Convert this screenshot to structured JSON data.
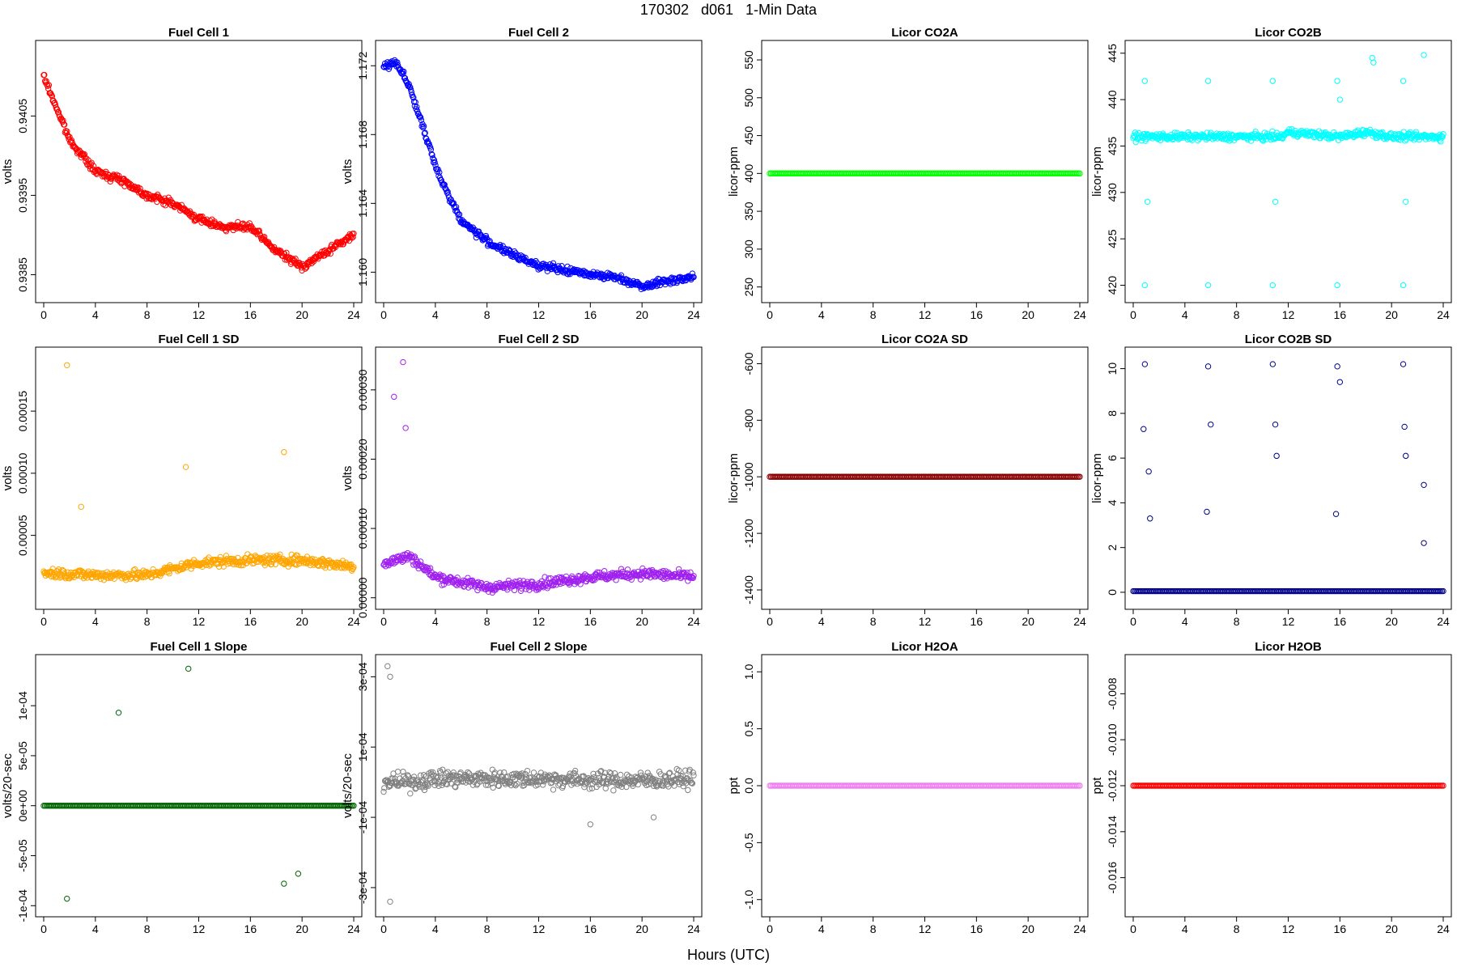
{
  "figure": {
    "title": "170302   d061   1-Min Data",
    "xlabel": "Hours (UTC)",
    "background": "#ffffff"
  },
  "chart_data": [
    {
      "id": "fc1",
      "type": "scatter",
      "title": "Fuel Cell 1",
      "ylabel": "volts",
      "color": "#ff0000",
      "xlim": [
        0,
        24
      ],
      "xticks": [
        "0",
        "4",
        "8",
        "12",
        "16",
        "20",
        "24"
      ],
      "ylim": [
        0.93825,
        0.94135
      ],
      "yticks": [
        {
          "v": 0.9385,
          "label": "0.9385"
        },
        {
          "v": 0.9395,
          "label": "0.9395"
        },
        {
          "v": 0.9405,
          "label": "0.9405"
        }
      ],
      "series": [
        {
          "x": [
            0,
            2,
            4,
            6,
            8,
            10,
            12,
            14,
            16,
            18,
            20,
            22,
            24
          ],
          "y": [
            0.941,
            0.9402,
            0.9398,
            0.9397,
            0.9395,
            0.9394,
            0.9392,
            0.9391,
            0.9391,
            0.9388,
            0.9386,
            0.9388,
            0.939
          ]
        }
      ]
    },
    {
      "id": "fc2",
      "type": "scatter",
      "title": "Fuel Cell 2",
      "ylabel": "volts",
      "color": "#0000ff",
      "xlim": [
        0,
        24
      ],
      "xticks": [
        "0",
        "4",
        "8",
        "12",
        "16",
        "20",
        "24"
      ],
      "ylim": [
        1.1587,
        1.173
      ],
      "yticks": [
        {
          "v": 1.16,
          "label": "1.160"
        },
        {
          "v": 1.164,
          "label": "1.164"
        },
        {
          "v": 1.168,
          "label": "1.168"
        },
        {
          "v": 1.172,
          "label": "1.172"
        }
      ],
      "series": [
        {
          "x": [
            0,
            1,
            2,
            3,
            4,
            5,
            6,
            8,
            10,
            12,
            14,
            16,
            18,
            20,
            22,
            24
          ],
          "y": [
            1.172,
            1.1722,
            1.1708,
            1.1685,
            1.1662,
            1.1645,
            1.163,
            1.1618,
            1.161,
            1.1604,
            1.1601,
            1.1599,
            1.1597,
            1.1592,
            1.1595,
            1.1597
          ]
        }
      ]
    },
    {
      "id": "co2a",
      "type": "scatter",
      "title": "Licor CO2A",
      "ylabel": "licor-ppm",
      "color": "#00ff00",
      "xlim": [
        0,
        24
      ],
      "xticks": [
        "0",
        "4",
        "8",
        "12",
        "16",
        "20",
        "24"
      ],
      "ylim": [
        240,
        565
      ],
      "yticks": [
        {
          "v": 250,
          "label": "250"
        },
        {
          "v": 300,
          "label": "300"
        },
        {
          "v": 350,
          "label": "350"
        },
        {
          "v": 400,
          "label": "400"
        },
        {
          "v": 450,
          "label": "450"
        },
        {
          "v": 500,
          "label": "500"
        },
        {
          "v": 550,
          "label": "550"
        }
      ],
      "series": [
        {
          "x": [
            0,
            24
          ],
          "y": [
            400,
            400
          ]
        }
      ]
    },
    {
      "id": "co2b",
      "type": "scatter",
      "title": "Licor CO2B",
      "ylabel": "licor-ppm",
      "color": "#00ffff",
      "xlim": [
        0,
        24
      ],
      "xticks": [
        "0",
        "4",
        "8",
        "12",
        "16",
        "20",
        "24"
      ],
      "ylim": [
        419,
        445.5
      ],
      "yticks": [
        {
          "v": 420,
          "label": "420"
        },
        {
          "v": 425,
          "label": "425"
        },
        {
          "v": 430,
          "label": "430"
        },
        {
          "v": 435,
          "label": "435"
        },
        {
          "v": 440,
          "label": "440"
        },
        {
          "v": 445,
          "label": "445"
        }
      ],
      "series": [
        {
          "x": [
            0,
            6,
            11.5,
            12,
            16,
            18,
            20,
            24
          ],
          "y": [
            436,
            436,
            436,
            436.5,
            436,
            436.5,
            436,
            436
          ]
        }
      ],
      "outliers": {
        "x": [
          0.9,
          0.9,
          1.1,
          5.8,
          5.8,
          10.8,
          10.8,
          11.0,
          15.8,
          15.8,
          16.0,
          18.5,
          18.6,
          20.9,
          20.9,
          21.1,
          22.5
        ],
        "y": [
          442,
          420,
          429,
          442,
          420,
          442,
          420,
          429,
          442,
          420,
          440,
          444.5,
          444,
          442,
          420,
          429,
          444.8
        ]
      }
    },
    {
      "id": "fc1sd",
      "type": "scatter",
      "title": "Fuel Cell 1 SD",
      "ylabel": "volts",
      "color": "#ffa500",
      "xlim": [
        0,
        24
      ],
      "xticks": [
        "0",
        "4",
        "8",
        "12",
        "16",
        "20",
        "24"
      ],
      "ylim": [
        -3e-06,
        0.000195
      ],
      "yticks": [
        {
          "v": 5e-05,
          "label": "0.00005"
        },
        {
          "v": 0.0001,
          "label": "0.00010"
        },
        {
          "v": 0.00015,
          "label": "0.00015"
        }
      ],
      "series": [
        {
          "x": [
            0,
            4,
            8,
            12,
            16,
            20,
            24
          ],
          "y": [
            2e-05,
            1.8e-05,
            1.8e-05,
            2.8e-05,
            3e-05,
            3e-05,
            2.5e-05
          ]
        }
      ],
      "outliers": {
        "x": [
          1.8,
          11.0,
          18.6,
          2.9
        ],
        "y": [
          0.000187,
          0.000105,
          0.000117,
          7.3e-05
        ]
      }
    },
    {
      "id": "fc2sd",
      "type": "scatter",
      "title": "Fuel Cell 2 SD",
      "ylabel": "volts",
      "color": "#a020f0",
      "xlim": [
        0,
        24
      ],
      "xticks": [
        "0",
        "4",
        "8",
        "12",
        "16",
        "20",
        "24"
      ],
      "ylim": [
        -5e-06,
        0.00035
      ],
      "yticks": [
        {
          "v": 0.0,
          "label": "0.00000"
        },
        {
          "v": 0.0001,
          "label": "0.00010"
        },
        {
          "v": 0.0002,
          "label": "0.00020"
        },
        {
          "v": 0.0003,
          "label": "0.00030"
        }
      ],
      "series": [
        {
          "x": [
            0,
            2,
            4,
            8,
            12,
            16,
            20,
            24
          ],
          "y": [
            5e-05,
            6e-05,
            3e-05,
            1.5e-05,
            2e-05,
            3e-05,
            3.5e-05,
            3e-05
          ]
        }
      ],
      "outliers": {
        "x": [
          1.5,
          0.8,
          1.7
        ],
        "y": [
          0.00034,
          0.00029,
          0.000245
        ]
      }
    },
    {
      "id": "co2asd",
      "type": "scatter",
      "title": "Licor CO2A SD",
      "ylabel": "licor-ppm",
      "color": "#8b0000",
      "xlim": [
        0,
        24
      ],
      "xticks": [
        "0",
        "4",
        "8",
        "12",
        "16",
        "20",
        "24"
      ],
      "ylim": [
        -1440,
        -570
      ],
      "yticks": [
        {
          "v": -1400,
          "label": "-1400"
        },
        {
          "v": -1200,
          "label": "-1200"
        },
        {
          "v": -1000,
          "label": "-1000"
        },
        {
          "v": -800,
          "label": "-800"
        },
        {
          "v": -600,
          "label": "-600"
        }
      ],
      "series": [
        {
          "x": [
            0,
            24
          ],
          "y": [
            -1000,
            -1000
          ]
        }
      ]
    },
    {
      "id": "co2bsd",
      "type": "scatter",
      "title": "Licor CO2B SD",
      "ylabel": "licor-ppm",
      "color": "#00008b",
      "xlim": [
        0,
        24
      ],
      "xticks": [
        "0",
        "4",
        "8",
        "12",
        "16",
        "20",
        "24"
      ],
      "ylim": [
        -0.4,
        10.6
      ],
      "yticks": [
        {
          "v": 0,
          "label": "0"
        },
        {
          "v": 2,
          "label": "2"
        },
        {
          "v": 4,
          "label": "4"
        },
        {
          "v": 6,
          "label": "6"
        },
        {
          "v": 8,
          "label": "8"
        },
        {
          "v": 10,
          "label": "10"
        }
      ],
      "series": [
        {
          "x": [
            0,
            24
          ],
          "y": [
            0.05,
            0.05
          ]
        }
      ],
      "outliers": {
        "x": [
          0.9,
          0.8,
          1.2,
          1.3,
          5.8,
          6.0,
          5.7,
          10.8,
          11.0,
          11.1,
          15.8,
          16.0,
          15.7,
          20.9,
          21.0,
          21.1,
          22.5,
          22.5
        ],
        "y": [
          10.2,
          7.3,
          5.4,
          3.3,
          10.1,
          7.5,
          3.6,
          10.2,
          7.5,
          6.1,
          10.1,
          9.4,
          3.5,
          10.2,
          7.4,
          6.1,
          4.8,
          2.2
        ]
      }
    },
    {
      "id": "fc1slope",
      "type": "scatter",
      "title": "Fuel Cell 1 Slope",
      "ylabel": "volts/20-sec",
      "color": "#006400",
      "xlim": [
        0,
        24
      ],
      "xticks": [
        "0",
        "4",
        "8",
        "12",
        "16",
        "20",
        "24"
      ],
      "ylim": [
        -0.000103,
        0.000143
      ],
      "yticks": [
        {
          "v": -0.0001,
          "label": "-1e-04"
        },
        {
          "v": -5e-05,
          "label": "-5e-05"
        },
        {
          "v": 0,
          "label": "0e+00"
        },
        {
          "v": 5e-05,
          "label": "5e-05"
        },
        {
          "v": 0.0001,
          "label": "1e-04"
        }
      ],
      "series": [
        {
          "x": [
            0,
            24
          ],
          "y": [
            0,
            0
          ]
        }
      ],
      "outliers": {
        "x": [
          11.2,
          5.8,
          1.8,
          18.6,
          19.7
        ],
        "y": [
          0.000137,
          9.3e-05,
          -9.3e-05,
          -7.8e-05,
          -6.8e-05
        ]
      }
    },
    {
      "id": "fc2slope",
      "type": "scatter",
      "title": "Fuel Cell 2 Slope",
      "ylabel": "volts/20-sec",
      "color": "#808080",
      "xlim": [
        0,
        24
      ],
      "xticks": [
        "0",
        "4",
        "8",
        "12",
        "16",
        "20",
        "24"
      ],
      "ylim": [
        -0.00036,
        0.00034
      ],
      "yticks": [
        {
          "v": -0.0003,
          "label": "-3e-04"
        },
        {
          "v": -0.0001,
          "label": "-1e-04"
        },
        {
          "v": 0.0001,
          "label": "1e-04"
        },
        {
          "v": 0.0003,
          "label": "3e-04"
        }
      ],
      "series": [
        {
          "x": [
            0,
            2,
            4,
            8,
            12,
            16,
            20,
            24
          ],
          "y": [
            0,
            0,
            1e-05,
            1e-05,
            1e-05,
            5e-06,
            5e-06,
            1e-05
          ]
        }
      ],
      "outliers": {
        "x": [
          0.3,
          0.5,
          0.5,
          16.0,
          20.9
        ],
        "y": [
          0.00033,
          -0.00034,
          0.0003,
          -0.00012,
          -0.0001
        ]
      }
    },
    {
      "id": "h2oa",
      "type": "scatter",
      "title": "Licor H2OA",
      "ylabel": "ppt",
      "color": "#ee82ee",
      "xlim": [
        0,
        24
      ],
      "xticks": [
        "0",
        "4",
        "8",
        "12",
        "16",
        "20",
        "24"
      ],
      "ylim": [
        -1.08,
        1.08
      ],
      "yticks": [
        {
          "v": -1.0,
          "label": "-1.0"
        },
        {
          "v": -0.5,
          "label": "-0.5"
        },
        {
          "v": 0.0,
          "label": "0.0"
        },
        {
          "v": 0.5,
          "label": "0.5"
        },
        {
          "v": 1.0,
          "label": "1.0"
        }
      ],
      "series": [
        {
          "x": [
            0,
            24
          ],
          "y": [
            0,
            0
          ]
        }
      ]
    },
    {
      "id": "h2ob",
      "type": "scatter",
      "title": "Licor H2OB",
      "ylabel": "ppt",
      "color": "#ff0000",
      "xlim": [
        0,
        24
      ],
      "xticks": [
        "0",
        "4",
        "8",
        "12",
        "16",
        "20",
        "24"
      ],
      "ylim": [
        -0.01735,
        -0.00665
      ],
      "yticks": [
        {
          "v": -0.016,
          "label": "-0.016"
        },
        {
          "v": -0.014,
          "label": "-0.014"
        },
        {
          "v": -0.012,
          "label": "-0.012"
        },
        {
          "v": -0.01,
          "label": "-0.010"
        },
        {
          "v": -0.008,
          "label": "-0.008"
        }
      ],
      "series": [
        {
          "x": [
            0,
            24
          ],
          "y": [
            -0.012,
            -0.012
          ]
        }
      ]
    }
  ]
}
